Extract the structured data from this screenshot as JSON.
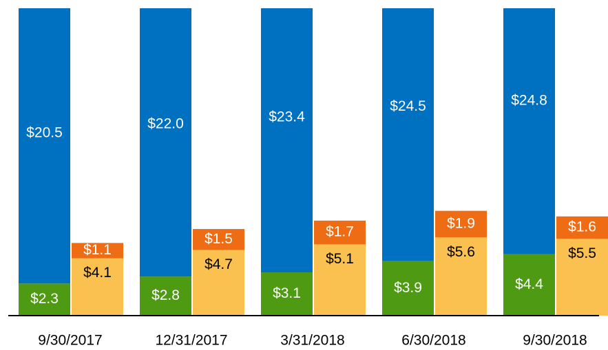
{
  "chart_data": {
    "type": "stacked_grouped_bar",
    "categories": [
      "9/30/2017",
      "12/31/2017",
      "3/31/2018",
      "6/30/2018",
      "9/30/2018"
    ],
    "ylim": [
      0,
      22
    ],
    "series": [
      {
        "color": "#4e9a12",
        "label_color": "#ffffff",
        "stack": 0,
        "values": [
          2.3,
          2.8,
          3.1,
          3.9,
          4.4
        ],
        "value_labels": [
          "$2.3",
          "$2.8",
          "$3.1",
          "$3.9",
          "$4.4"
        ]
      },
      {
        "color": "#0070c0",
        "label_color": "#ffffff",
        "stack": 0,
        "values": [
          20.5,
          22.0,
          23.4,
          24.5,
          24.8
        ],
        "value_labels": [
          "$20.5",
          "$22.0",
          "$23.4",
          "$24.5",
          "$24.8"
        ]
      },
      {
        "color": "#fac050",
        "label_color": "#000000",
        "stack": 1,
        "values": [
          4.1,
          4.7,
          5.1,
          5.6,
          5.5
        ],
        "value_labels": [
          "$4.1",
          "$4.7",
          "$5.1",
          "$5.6",
          "$5.5"
        ]
      },
      {
        "color": "#ee6c14",
        "label_color": "#ffffff",
        "stack": 1,
        "values": [
          1.1,
          1.5,
          1.7,
          1.9,
          1.6
        ],
        "value_labels": [
          "$1.1",
          "$1.5",
          "$1.7",
          "$1.9",
          "$1.6"
        ]
      }
    ]
  }
}
